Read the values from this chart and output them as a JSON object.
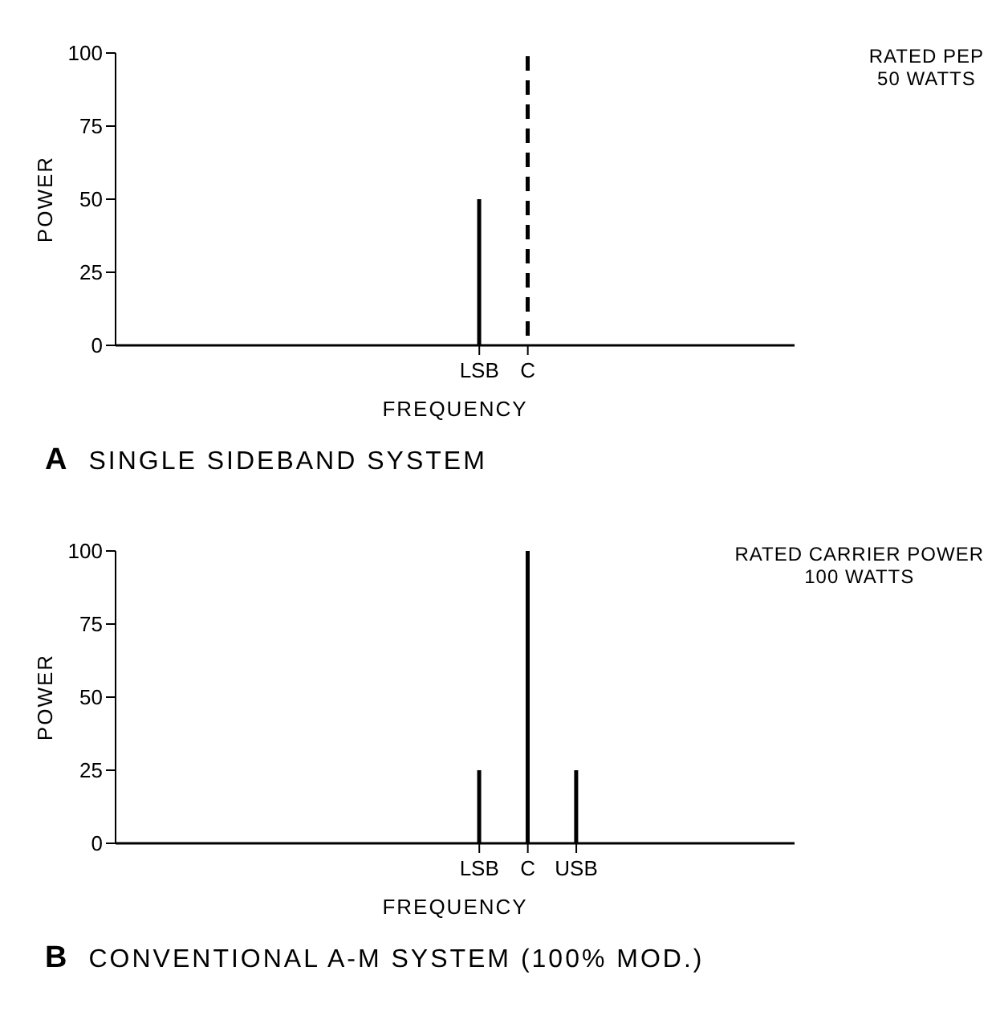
{
  "chart_data": [
    {
      "type": "bar",
      "title": "A SINGLE SIDEBAND SYSTEM",
      "xlabel": "FREQUENCY",
      "ylabel": "POWER",
      "annotations": [
        "RATED PEP\n50 WATTS"
      ],
      "categories": [
        null,
        null,
        null,
        null,
        null,
        null,
        null,
        "LSB",
        "C",
        null,
        null,
        null,
        null,
        null
      ],
      "stacked": true,
      "series": [
        {
          "color": "#000000",
          "line_style": "solid",
          "values": [
            null,
            null,
            null,
            null,
            null,
            null,
            null,
            50,
            null,
            null,
            null,
            null,
            null,
            null
          ]
        },
        {
          "color": "#000000",
          "line_style": "dashed",
          "values": [
            null,
            null,
            null,
            null,
            null,
            null,
            null,
            null,
            100,
            null,
            null,
            null,
            null,
            null
          ]
        }
      ],
      "ylim": [
        0,
        100
      ],
      "yticks": [
        0,
        25,
        50,
        75,
        100
      ]
    },
    {
      "type": "bar",
      "title": "B CONVENTIONAL A-M SYSTEM (100% MOD.)",
      "xlabel": "FREQUENCY",
      "ylabel": "POWER",
      "annotations": [
        "RATED CARRIER POWER\n100 WATTS"
      ],
      "categories": [
        null,
        null,
        null,
        null,
        null,
        null,
        null,
        "LSB",
        "C",
        "USB",
        null,
        null,
        null,
        null
      ],
      "series": [
        {
          "color": "#000000",
          "line_style": "solid",
          "values": [
            null,
            null,
            null,
            null,
            null,
            null,
            null,
            25,
            100,
            25,
            null,
            null,
            null,
            null
          ]
        }
      ],
      "ylim": [
        0,
        100
      ],
      "yticks": [
        0,
        25,
        50,
        75,
        100
      ]
    }
  ]
}
